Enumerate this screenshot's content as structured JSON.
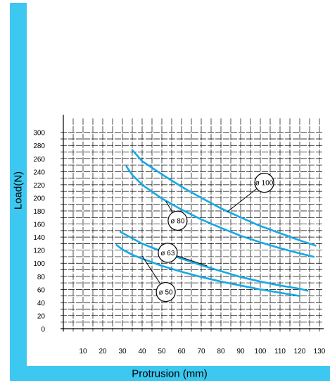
{
  "chart_data": {
    "type": "line",
    "xlabel": "Protrusion  (mm)",
    "ylabel": "Load(N)",
    "xlim": [
      0,
      130
    ],
    "ylim": [
      0,
      300
    ],
    "x_ticks": [
      10,
      20,
      30,
      40,
      50,
      60,
      70,
      80,
      90,
      100,
      110,
      120,
      130
    ],
    "y_ticks": [
      0,
      20,
      40,
      60,
      80,
      100,
      120,
      140,
      160,
      180,
      200,
      220,
      240,
      260,
      280,
      300
    ],
    "grid": true,
    "series": [
      {
        "name": "ø 100",
        "x": [
          35,
          40,
          50,
          60,
          70,
          80,
          90,
          100,
          110,
          120,
          128
        ],
        "y": [
          273,
          256,
          236,
          217,
          200,
          184,
          170,
          157,
          146,
          135,
          127
        ],
        "label_at": [
          102,
          223
        ]
      },
      {
        "name": "ø 80",
        "x": [
          32,
          35,
          40,
          50,
          60,
          70,
          80,
          90,
          100,
          110,
          120,
          127
        ],
        "y": [
          248,
          235,
          220,
          199,
          182,
          167,
          154,
          142,
          132,
          123,
          115,
          110
        ],
        "label_at": [
          58,
          165
        ]
      },
      {
        "name": "ø 63",
        "x": [
          29,
          35,
          40,
          50,
          60,
          70,
          80,
          90,
          100,
          110,
          120,
          124
        ],
        "y": [
          148,
          138,
          130,
          118,
          107,
          97,
          88,
          79,
          72,
          66,
          61,
          58
        ],
        "label_at": [
          53,
          116
        ]
      },
      {
        "name": "ø 50",
        "x": [
          27,
          30,
          35,
          40,
          50,
          60,
          70,
          80,
          90,
          100,
          110,
          120
        ],
        "y": [
          128,
          121,
          113,
          107,
          96,
          87,
          79,
          72,
          66,
          60,
          55,
          50
        ],
        "label_at": [
          52,
          56
        ]
      }
    ]
  },
  "colors": {
    "frame": "#3cc8f0",
    "curve": "#16a9e6",
    "grid": "#000000"
  }
}
